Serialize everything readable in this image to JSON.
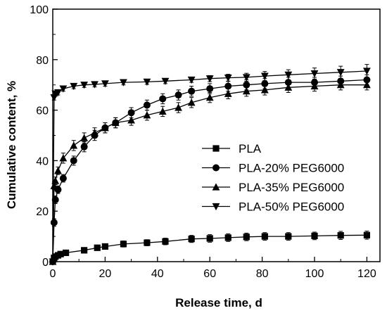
{
  "chart_data": {
    "type": "line",
    "title": "",
    "xlabel": "Release time, d",
    "ylabel": "Cumulative content, %",
    "xlim": [
      0,
      125
    ],
    "ylim": [
      0,
      100
    ],
    "xticks": [
      0,
      20,
      40,
      60,
      80,
      100,
      120
    ],
    "yticks": [
      0,
      20,
      40,
      60,
      80,
      100
    ],
    "grid": false,
    "legend_position": "bottom-right",
    "error_bars": true,
    "series": [
      {
        "name": "PLA",
        "marker": "square",
        "x": [
          0.5,
          1,
          2,
          3,
          5,
          12,
          17,
          20,
          27,
          36,
          43,
          53,
          60,
          67,
          74,
          81,
          90,
          100,
          110,
          120
        ],
        "y": [
          1.5,
          2,
          2.5,
          3,
          3.5,
          4.5,
          5.5,
          6,
          7,
          7.5,
          8,
          9,
          9.2,
          9.5,
          9.8,
          10,
          10,
          10.2,
          10.4,
          10.5
        ],
        "err": [
          0.8,
          0.8,
          0.8,
          0.8,
          0.8,
          1,
          1,
          1,
          1.2,
          1.2,
          1.3,
          1.4,
          1.5,
          1.5,
          1.5,
          1.5,
          1.5,
          1.5,
          1.6,
          1.6
        ]
      },
      {
        "name": "PLA-20% PEG6000",
        "marker": "circle",
        "x": [
          0,
          0.5,
          1,
          2,
          4,
          8,
          12,
          16,
          20,
          24,
          30,
          36,
          42,
          48,
          53,
          60,
          67,
          74,
          81,
          90,
          100,
          110,
          120
        ],
        "y": [
          0,
          15.5,
          24.5,
          28.5,
          33,
          40,
          45.5,
          50,
          53,
          55,
          59,
          62,
          64.5,
          66,
          67.5,
          68.5,
          69.5,
          70,
          70.5,
          71,
          71,
          71.5,
          72
        ],
        "err": [
          0,
          1.5,
          1.5,
          1.5,
          1.5,
          1.8,
          2,
          2,
          2,
          2,
          2,
          2,
          2,
          2,
          2,
          2,
          2,
          2,
          2,
          2,
          2,
          2,
          2
        ]
      },
      {
        "name": "PLA-35% PEG6000",
        "marker": "triangle-up",
        "x": [
          0,
          0.5,
          1,
          2,
          4,
          8,
          12,
          16,
          20,
          24,
          30,
          36,
          42,
          48,
          53,
          60,
          67,
          74,
          81,
          90,
          100,
          110,
          120
        ],
        "y": [
          0,
          30,
          32,
          36,
          41,
          46,
          49,
          51,
          53,
          55,
          56,
          58,
          59.5,
          61,
          63,
          65,
          66.5,
          67.5,
          68,
          69,
          69.5,
          70,
          70
        ],
        "err": [
          0,
          1.5,
          1.5,
          1.5,
          2,
          2,
          2,
          2,
          2,
          2,
          2,
          2,
          2,
          2,
          2,
          2,
          2,
          2,
          2,
          2,
          2,
          2,
          2
        ]
      },
      {
        "name": "PLA-50% PEG6000",
        "marker": "triangle-down",
        "x": [
          0,
          0.5,
          1,
          2,
          4,
          8,
          12,
          16,
          20,
          27,
          36,
          43,
          53,
          60,
          67,
          74,
          81,
          90,
          100,
          110,
          120
        ],
        "y": [
          0,
          65,
          66.5,
          67,
          68.5,
          69.5,
          70,
          70.2,
          70.5,
          71,
          71.2,
          71.5,
          72,
          72.5,
          72.8,
          73,
          73.5,
          74,
          74.5,
          75,
          75.5
        ],
        "err": [
          0,
          1,
          1,
          1,
          1,
          1,
          1,
          1,
          1,
          1,
          1,
          1,
          1,
          1.2,
          1.4,
          1.6,
          1.8,
          2,
          2.2,
          2.4,
          2.6
        ]
      }
    ]
  }
}
